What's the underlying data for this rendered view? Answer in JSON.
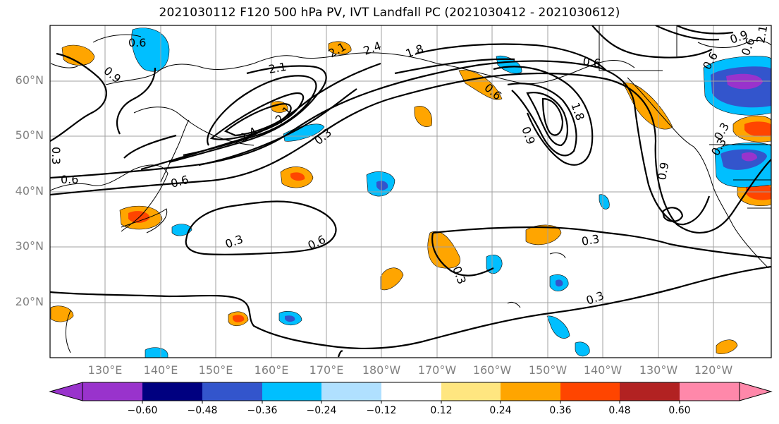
{
  "title": "2021030112 F120 500 hPa PV, IVT Landfall PC (2021030412 - 2021030612)",
  "map": {
    "lat_labels": [
      "60°N",
      "50°N",
      "40°N",
      "30°N",
      "20°N"
    ],
    "lon_labels": [
      "130°E",
      "140°E",
      "150°E",
      "160°E",
      "170°E",
      "180°W",
      "170°W",
      "160°W",
      "150°W",
      "140°W",
      "130°W",
      "120°W"
    ],
    "contour_labels": [
      "0.6",
      "0.9",
      "2.1",
      "2.4",
      "1.8",
      "0.6",
      "2.1",
      "2.4",
      "2.1",
      "0.3",
      "0.6",
      "0.6",
      "0.3",
      "0.6",
      "0.3",
      "0.3",
      "0.3",
      "0.9",
      "0.6",
      "1.8",
      "0.9",
      "0.6",
      "0.3",
      "0.3",
      "0.6",
      "0.9",
      "2.1",
      "0.3"
    ],
    "contour_color": "#000000",
    "grid_color": "#a0a0a0"
  },
  "colorbar": {
    "tick_labels": [
      "−0.60",
      "−0.48",
      "−0.36",
      "−0.24",
      "−0.12",
      "0.12",
      "0.24",
      "0.36",
      "0.48",
      "0.60"
    ],
    "colors": [
      "#9933cc",
      "#000080",
      "#3355cc",
      "#00bfff",
      "#b0e0ff",
      "#ffffff",
      "#ffe680",
      "#ffa500",
      "#ff4500",
      "#b22222",
      "#ff88aa"
    ]
  }
}
